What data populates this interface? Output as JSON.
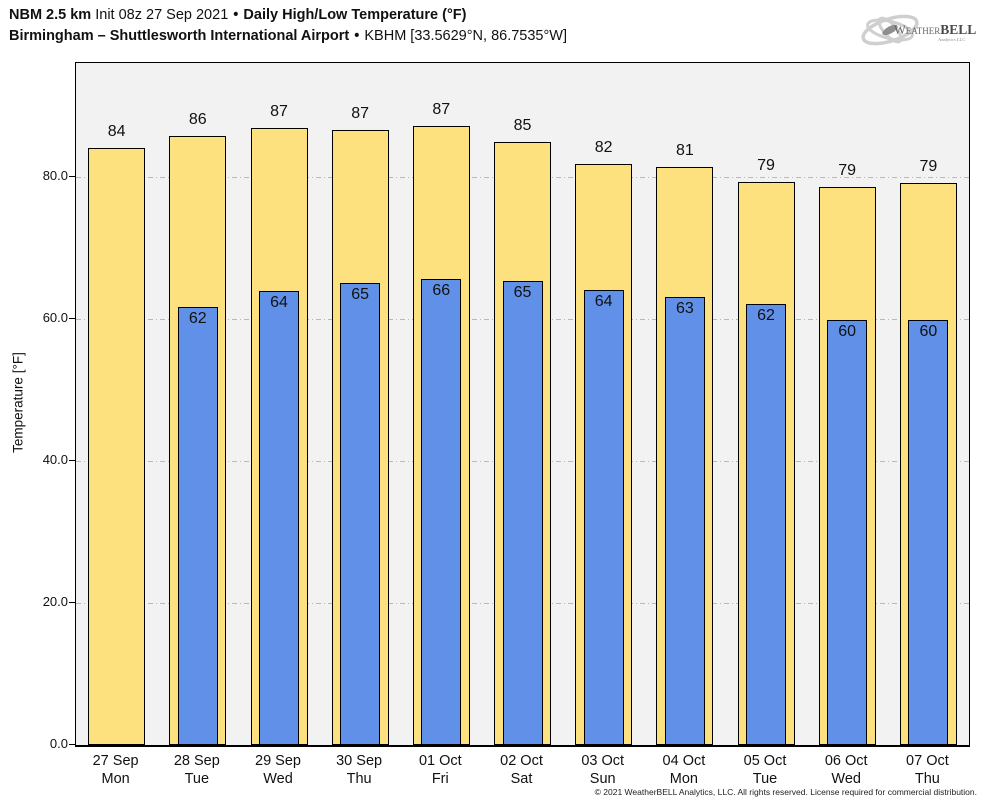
{
  "header": {
    "model": "NBM 2.5 km",
    "init": "Init 08z 27 Sep 2021",
    "dot": "•",
    "product": "Daily High/Low Temperature (°F)",
    "station": "Birmingham – Shuttlesworth International Airport",
    "station_id": "KBHM [33.5629°N, 86.7535°W]"
  },
  "logo": {
    "brand_prefix": "Weather",
    "brand_suffix": "BELL",
    "sub": "Analytics LLC"
  },
  "footer": {
    "copyright": "© 2021 WeatherBELL Analytics, LLC. All rights reserved. License required for commercial distribution."
  },
  "colors": {
    "high_bar": "#FCE17E",
    "low_bar": "#6090E8",
    "plot_background": "#F2F2F2",
    "gridline": "#B9B9B9",
    "bar_edge": "#000000"
  },
  "chart_data": {
    "type": "bar",
    "title": "NBM 2.5 km Daily High/Low Temperature (°F) — KBHM",
    "xlabel": "",
    "ylabel": "Temperature [°F]",
    "ylim": [
      0,
      96
    ],
    "yticks": [
      0,
      20,
      40,
      60,
      80
    ],
    "ytick_labels": [
      "0.0",
      "20.0",
      "40.0",
      "60.0",
      "80.0"
    ],
    "grid": "horizontal dash-dot at yticks, behind bars",
    "legend_position": "none",
    "categories": [
      {
        "date": "27 Sep",
        "day": "Mon"
      },
      {
        "date": "28 Sep",
        "day": "Tue"
      },
      {
        "date": "29 Sep",
        "day": "Wed"
      },
      {
        "date": "30 Sep",
        "day": "Thu"
      },
      {
        "date": "01 Oct",
        "day": "Fri"
      },
      {
        "date": "02 Oct",
        "day": "Sat"
      },
      {
        "date": "03 Oct",
        "day": "Sun"
      },
      {
        "date": "04 Oct",
        "day": "Mon"
      },
      {
        "date": "05 Oct",
        "day": "Tue"
      },
      {
        "date": "06 Oct",
        "day": "Wed"
      },
      {
        "date": "07 Oct",
        "day": "Thu"
      }
    ],
    "series": [
      {
        "name": "Daily High",
        "color": "#FCE17E",
        "values": [
          84,
          86,
          87,
          87,
          87,
          85,
          82,
          81,
          79,
          79,
          79
        ],
        "values_exact": [
          84.1,
          85.8,
          86.8,
          86.6,
          87.1,
          84.9,
          81.8,
          81.3,
          79.3,
          78.5,
          79.1
        ]
      },
      {
        "name": "Daily Low",
        "color": "#6090E8",
        "values": [
          null,
          62,
          64,
          65,
          66,
          65,
          64,
          63,
          62,
          60,
          60
        ],
        "values_exact": [
          null,
          61.7,
          63.9,
          65.1,
          65.6,
          65.3,
          64.0,
          63.0,
          62.1,
          59.8,
          59.8
        ]
      }
    ]
  }
}
